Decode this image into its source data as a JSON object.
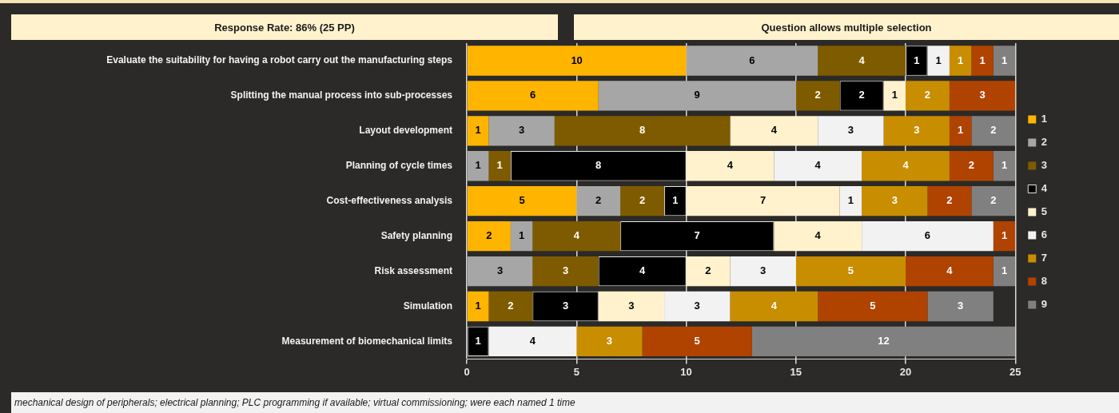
{
  "chart_data": {
    "type": "bar",
    "orientation": "horizontal",
    "stacked": true,
    "categories": [
      "Evaluate the suitability for having a robot carry out the manufacturing steps",
      "Splitting the manual process into sub-processes",
      "Layout development",
      "Planning of cycle times",
      "Cost-effectiveness analysis",
      "Safety planning",
      "Risk assessment",
      "Simulation",
      "Measurement of biomechanical limits"
    ],
    "series": [
      {
        "name": "1",
        "color": "#ffb400",
        "values": [
          10,
          6,
          1,
          null,
          5,
          2,
          null,
          1,
          null
        ]
      },
      {
        "name": "2",
        "color": "#a6a6a6",
        "values": [
          6,
          9,
          3,
          1,
          2,
          1,
          3,
          null,
          null
        ]
      },
      {
        "name": "3",
        "color": "#7f5b00",
        "values": [
          4,
          2,
          8,
          1,
          2,
          4,
          3,
          2,
          null
        ]
      },
      {
        "name": "4",
        "color": "#000000",
        "values": [
          1,
          2,
          null,
          8,
          1,
          7,
          4,
          3,
          1
        ]
      },
      {
        "name": "5",
        "color": "#fff2cc",
        "values": [
          null,
          1,
          4,
          4,
          7,
          4,
          2,
          3,
          null
        ]
      },
      {
        "name": "6",
        "color": "#f2f2f2",
        "values": [
          1,
          null,
          3,
          4,
          1,
          6,
          3,
          3,
          4
        ]
      },
      {
        "name": "7",
        "color": "#c98d00",
        "values": [
          1,
          2,
          3,
          4,
          3,
          null,
          5,
          4,
          3
        ]
      },
      {
        "name": "8",
        "color": "#b04300",
        "values": [
          1,
          3,
          1,
          2,
          2,
          1,
          4,
          5,
          5
        ]
      },
      {
        "name": "9",
        "color": "#808080",
        "values": [
          1,
          null,
          2,
          1,
          2,
          null,
          1,
          3,
          12
        ]
      }
    ],
    "xlim": [
      0,
      25
    ],
    "xticks": [
      0,
      5,
      10,
      15,
      20,
      25
    ],
    "grid": "x",
    "legend": "right",
    "data_labels": true,
    "annotations": [
      "Response Rate: 86% (25 PP)",
      "Question allows multiple selection",
      "mechanical design of peripherals; electrical planning; PLC programming if available; virtual commissioning; were each named 1 time"
    ]
  }
}
